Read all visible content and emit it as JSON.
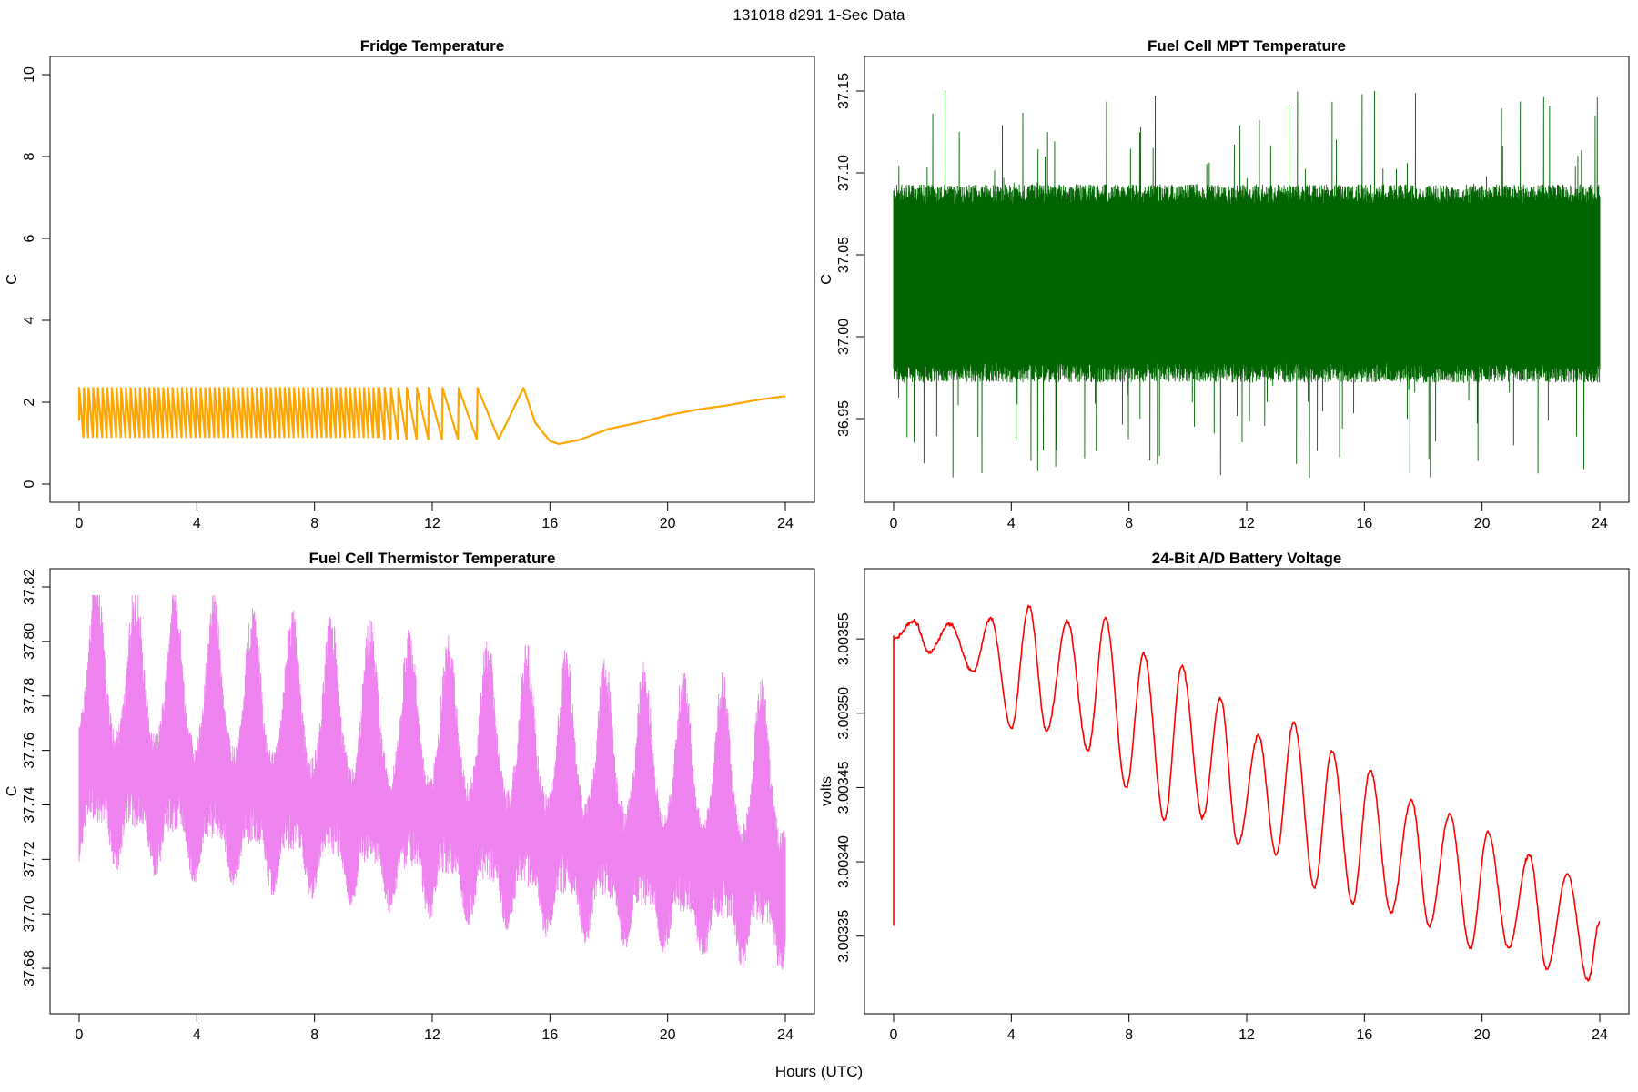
{
  "figure": {
    "title": "131018   d291   1-Sec Data",
    "xlabel": "Hours (UTC)"
  },
  "chart_data": [
    {
      "type": "line",
      "title": "Fridge Temperature",
      "ylabel": "C",
      "xlim": [
        0,
        24
      ],
      "ylim": [
        0,
        10
      ],
      "xticks": [
        0,
        4,
        8,
        12,
        16,
        20,
        24
      ],
      "yticks": [
        0,
        2,
        4,
        6,
        8,
        10
      ],
      "color": "#FFA500",
      "series": [
        {
          "segments": [
            {
              "kind": "sawtooth",
              "x_start": 0,
              "x_end": 10.2,
              "low": 1.15,
              "high": 2.35,
              "cycles_per_hour": 6.3
            },
            {
              "kind": "sawtooth_slowing",
              "x_start": 10.2,
              "x_end": 15.1,
              "low": 1.05,
              "high": 2.35
            },
            {
              "kind": "recovery",
              "points": [
                [
                  15.1,
                  2.35
                ],
                [
                  15.5,
                  1.5
                ],
                [
                  16.0,
                  1.05
                ],
                [
                  16.3,
                  0.98
                ],
                [
                  17.0,
                  1.08
                ],
                [
                  18.0,
                  1.35
                ],
                [
                  19.0,
                  1.5
                ],
                [
                  20.0,
                  1.68
                ],
                [
                  21.0,
                  1.82
                ],
                [
                  22.0,
                  1.92
                ],
                [
                  23.0,
                  2.05
                ],
                [
                  24.0,
                  2.15
                ]
              ]
            }
          ]
        }
      ]
    },
    {
      "type": "line",
      "title": "Fuel Cell MPT Temperature",
      "ylabel": "C",
      "xlim": [
        0,
        24
      ],
      "ylim": [
        36.91,
        37.16
      ],
      "xticks": [
        0,
        4,
        8,
        12,
        16,
        20,
        24
      ],
      "yticks": [
        36.95,
        37.0,
        37.05,
        37.1,
        37.15
      ],
      "ytick_labels": [
        "36.95",
        "37.00",
        "37.05",
        "37.10",
        "37.15"
      ],
      "color": "#006400",
      "series": [
        {
          "kind": "noise_band",
          "mean": 37.03,
          "band_low": 36.98,
          "band_high": 37.085,
          "spike_max": 37.153,
          "spike_min": 36.912
        }
      ]
    },
    {
      "type": "line",
      "title": "Fuel Cell Thermistor Temperature",
      "ylabel": "C",
      "xlim": [
        0,
        24
      ],
      "ylim": [
        37.67,
        37.82
      ],
      "xticks": [
        0,
        4,
        8,
        12,
        16,
        20,
        24
      ],
      "yticks": [
        37.68,
        37.7,
        37.72,
        37.74,
        37.76,
        37.78,
        37.8,
        37.82
      ],
      "ytick_labels": [
        "37.68",
        "37.70",
        "37.72",
        "37.74",
        "37.76",
        "37.78",
        "37.80",
        "37.82"
      ],
      "color": "#EE82EE",
      "series": [
        {
          "kind": "oscillating_noise",
          "mean_start": 37.762,
          "mean_end": 37.722,
          "period_hours": 1.33,
          "envelope_low": 37.675,
          "envelope_high": 37.817
        }
      ]
    },
    {
      "type": "line",
      "title": "24-Bit A/D Battery Voltage",
      "ylabel": "volts",
      "xlim": [
        0,
        24
      ],
      "ylim": [
        3.00331,
        3.003585
      ],
      "xticks": [
        0,
        4,
        8,
        12,
        16,
        20,
        24
      ],
      "yticks": [
        3.00335,
        3.0034,
        3.00345,
        3.0035,
        3.00355
      ],
      "ytick_labels": [
        "3.00335",
        "3.00340",
        "3.00345",
        "3.00350",
        "3.00355"
      ],
      "color": "#FF0000",
      "series": [
        {
          "kind": "oscillation",
          "start_spike": 3.003357,
          "peaks": [
            [
              0.0,
              3.00355
            ],
            [
              0.7,
              3.003562
            ],
            [
              1.9,
              3.00356
            ],
            [
              3.3,
              3.003564
            ],
            [
              4.6,
              3.003572
            ],
            [
              5.9,
              3.003562
            ],
            [
              7.2,
              3.003564
            ],
            [
              8.5,
              3.00354
            ],
            [
              9.8,
              3.003532
            ],
            [
              11.1,
              3.00351
            ],
            [
              12.4,
              3.003485
            ],
            [
              13.6,
              3.003494
            ],
            [
              14.9,
              3.003475
            ],
            [
              16.2,
              3.003462
            ],
            [
              17.6,
              3.003442
            ],
            [
              18.9,
              3.003432
            ],
            [
              20.2,
              3.00342
            ],
            [
              21.6,
              3.003405
            ],
            [
              22.9,
              3.003392
            ],
            [
              24.0,
              3.00336
            ]
          ],
          "troughs": [
            [
              1.2,
              3.003541
            ],
            [
              2.7,
              3.003528
            ],
            [
              4.0,
              3.00349
            ],
            [
              5.2,
              3.003488
            ],
            [
              6.6,
              3.003475
            ],
            [
              7.9,
              3.00345
            ],
            [
              9.2,
              3.003428
            ],
            [
              10.5,
              3.00343
            ],
            [
              11.7,
              3.003412
            ],
            [
              13.0,
              3.003405
            ],
            [
              14.3,
              3.003383
            ],
            [
              15.6,
              3.003372
            ],
            [
              16.9,
              3.003366
            ],
            [
              18.2,
              3.003357
            ],
            [
              19.6,
              3.003342
            ],
            [
              20.9,
              3.003342
            ],
            [
              22.2,
              3.003328
            ],
            [
              23.6,
              3.00332
            ]
          ]
        }
      ]
    }
  ]
}
